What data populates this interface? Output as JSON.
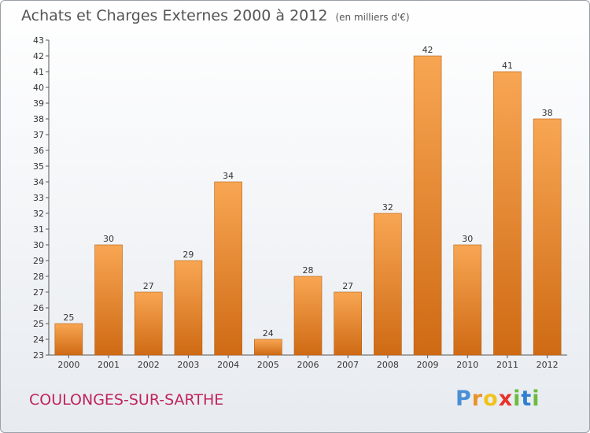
{
  "header": {
    "title": "Achats et Charges Externes 2000 à 2012",
    "unit": "(en milliers d'€)"
  },
  "footer": {
    "commune": "COULONGES-SUR-SARTHE",
    "logo": "Proxiti"
  },
  "colors": {
    "bar_light": "#f8a653",
    "bar_dark": "#cf6a14",
    "commune_text": "#c0245c",
    "logo_letters": [
      "#4a8fd6",
      "#e8922a",
      "#f2c21a",
      "#e8322c",
      "#6cbb3c",
      "#2f7fd0",
      "#6cbb3c"
    ]
  },
  "chart_data": {
    "type": "bar",
    "title": "Achats et Charges Externes 2000 à 2012",
    "subtitle": "(en milliers d'€)",
    "categories": [
      "2000",
      "2001",
      "2002",
      "2003",
      "2004",
      "2005",
      "2006",
      "2007",
      "2008",
      "2009",
      "2010",
      "2011",
      "2012"
    ],
    "values": [
      25,
      30,
      27,
      29,
      34,
      24,
      28,
      27,
      32,
      42,
      30,
      41,
      38
    ],
    "ylim": [
      23,
      43
    ],
    "yticks": [
      23,
      24,
      25,
      26,
      27,
      28,
      29,
      30,
      31,
      32,
      33,
      34,
      35,
      36,
      37,
      38,
      39,
      40,
      41,
      42,
      43
    ],
    "grid": false,
    "legend": "none"
  }
}
